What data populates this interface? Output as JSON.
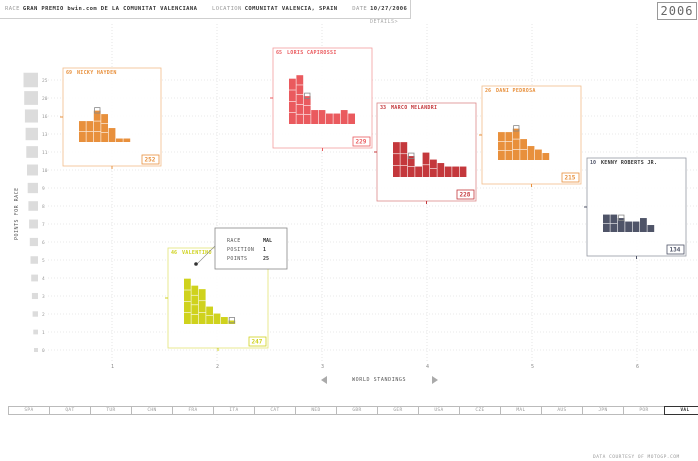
{
  "header": {
    "race_label": "RACE",
    "race_value": "GRAN PREMIO bwin.com DE LA COMUNITAT VALENCIANA",
    "location_label": "LOCATION",
    "location_value": "COMUNITAT VALENCIA, SPAIN",
    "date_label": "DATE",
    "date_value": "10/27/2006",
    "year": "2006",
    "details_label": "DETAILS>"
  },
  "chart_data": {
    "type": "bar",
    "ylabel": "POINTS FOR RACE",
    "xlabel": "WORLD STANDINGS",
    "y_ticks": [
      "0",
      "1",
      "2",
      "3",
      "4",
      "5",
      "6",
      "7",
      "8",
      "9",
      "10",
      "11",
      "13",
      "16",
      "20",
      "25"
    ],
    "x_ticks": [
      "1",
      "2",
      "3",
      "4",
      "5",
      "6"
    ],
    "riders": [
      {
        "number": "69",
        "name": "NICKY HAYDEN",
        "total": "252",
        "color": "#e8903c",
        "bars": [
          6,
          6,
          9,
          8,
          4,
          1,
          1
        ]
      },
      {
        "number": "46",
        "name": "VALENTINO ROSSI",
        "total": "247",
        "color": "#cfd21d",
        "bars": [
          13,
          11,
          10,
          5,
          3,
          2,
          1
        ]
      },
      {
        "number": "65",
        "name": "LORIS CAPIROSSI",
        "total": "229",
        "color": "#ea5a5e",
        "bars": [
          13,
          14,
          8,
          4,
          4,
          3,
          3,
          4,
          3
        ]
      },
      {
        "number": "33",
        "name": "MARCO MELANDRI",
        "total": "228",
        "color": "#c4383c",
        "bars": [
          10,
          10,
          6,
          3,
          7,
          5,
          4,
          3,
          3,
          3
        ]
      },
      {
        "number": "26",
        "name": "DANI PEDROSA",
        "total": "215",
        "color": "#e8903c",
        "bars": [
          8,
          8,
          9,
          6,
          4,
          3,
          2
        ]
      },
      {
        "number": "10",
        "name": "KENNY ROBERTS JR.",
        "total": "134",
        "color": "#4f5468",
        "bars": [
          5,
          5,
          4,
          3,
          3,
          4,
          2
        ]
      }
    ],
    "tooltip": {
      "race_label": "RACE",
      "race_value": "MAL",
      "position_label": "POSITION",
      "position_value": "1",
      "points_label": "POINTS",
      "points_value": "25"
    }
  },
  "timeline": {
    "races": [
      "SPA",
      "QAT",
      "TUR",
      "CHN",
      "FRA",
      "ITA",
      "CAT",
      "NED",
      "GBR",
      "GER",
      "USA",
      "CZE",
      "MAL",
      "AUS",
      "JPN",
      "POR",
      "VAL"
    ],
    "selected": "VAL"
  },
  "credit": "DATA COURTESY OF MOTOGP.COM"
}
